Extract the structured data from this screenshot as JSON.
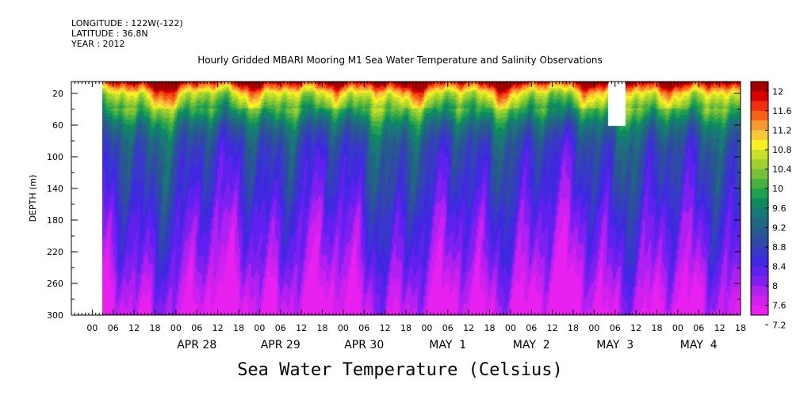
{
  "header": {
    "longitude": "LONGITUDE : 122W(-122)",
    "latitude": "LATITUDE : 36.8N",
    "year": "YEAR : 2012"
  },
  "title": "Hourly Gridded MBARI Mooring M1 Sea Water Temperature and Salinity Observations",
  "caption": "Sea Water Temperature (Celsius)",
  "chart_data": {
    "type": "heatmap",
    "ylabel": "DEPTH (m)",
    "ylim": [
      300,
      5
    ],
    "y_ticks": [
      "20",
      "60",
      "100",
      "140",
      "180",
      "220",
      "260",
      "300"
    ],
    "x_range_hours": [
      -24,
      168
    ],
    "x_hour_labels": [
      "00",
      "06",
      "12",
      "18",
      "00",
      "06",
      "12",
      "18",
      "00",
      "06",
      "12",
      "18",
      "00",
      "06",
      "12",
      "18",
      "00",
      "06",
      "12",
      "18",
      "00",
      "06",
      "12",
      "18",
      "00",
      "06",
      "12",
      "18",
      "00",
      "06",
      "12",
      "18"
    ],
    "x_day_labels": [
      "APR 28",
      "APR 29",
      "APR 30",
      "MAY  1",
      "MAY  2",
      "MAY  3",
      "MAY  4"
    ],
    "colorbar": {
      "levels": [
        "12",
        "11.6",
        "11.2",
        "10.8",
        "10.4",
        "10",
        "9.6",
        "9.2",
        "8.8",
        "8.4",
        "8",
        "7.6",
        "7.2"
      ],
      "colors": [
        "#a00000",
        "#d80000",
        "#f03010",
        "#f86018",
        "#f89830",
        "#f8c838",
        "#f8f020",
        "#c8e028",
        "#a0d030",
        "#78c038",
        "#48b040",
        "#20a050",
        "#108860",
        "#187878",
        "#206880",
        "#285890",
        "#3048a8",
        "#3838c8",
        "#4028e0",
        "#6020f0",
        "#8020f0",
        "#b020f0",
        "#d020f0",
        "#e820f0"
      ]
    },
    "profile_depths_m": [
      5,
      20,
      40,
      60,
      80,
      100,
      140,
      180,
      220,
      260,
      300
    ],
    "profile_temperature_c": [
      11.9,
      10.7,
      9.9,
      9.2,
      8.8,
      8.6,
      8.4,
      8.1,
      7.9,
      7.6,
      7.3
    ],
    "missing_region": {
      "start_hours": 130,
      "end_hours": 135,
      "depth_bottom_m": 60
    }
  }
}
